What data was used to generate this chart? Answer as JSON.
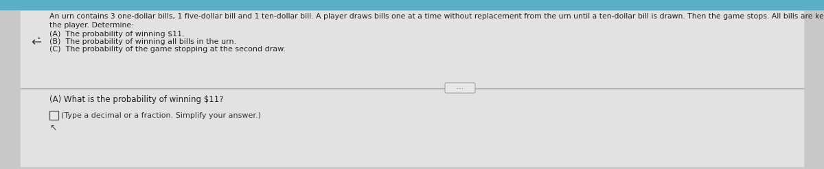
{
  "bg_color": "#c8c8c8",
  "upper_panel_color": "#e2e2e2",
  "lower_panel_color": "#d8d8d8",
  "top_bar_color": "#5aaec8",
  "divider_color": "#aaaaaa",
  "header_text_line1": "An urn contains 3 one-dollar bills, 1 five-dollar bill and 1 ten-dollar bill. A player draws bills one at a time without replacement from the urn until a ten-dollar bill is drawn. Then the game stops. All bills are kept by",
  "header_text_line2": "the player. Determine:",
  "items": [
    "(A)  The probability of winning $11.",
    "(B)  The probability of winning all bills in the urn.",
    "(C)  The probability of the game stopping at the second draw."
  ],
  "question_label": "(A) What is the probability of winning $11?",
  "answer_prompt": "(Type a decimal or a fraction. Simplify your answer.)",
  "arrow_symbol": "←",
  "dots": "...",
  "header_fontsize": 7.8,
  "item_fontsize": 8.0,
  "question_fontsize": 8.5,
  "answer_fontsize": 8.0
}
